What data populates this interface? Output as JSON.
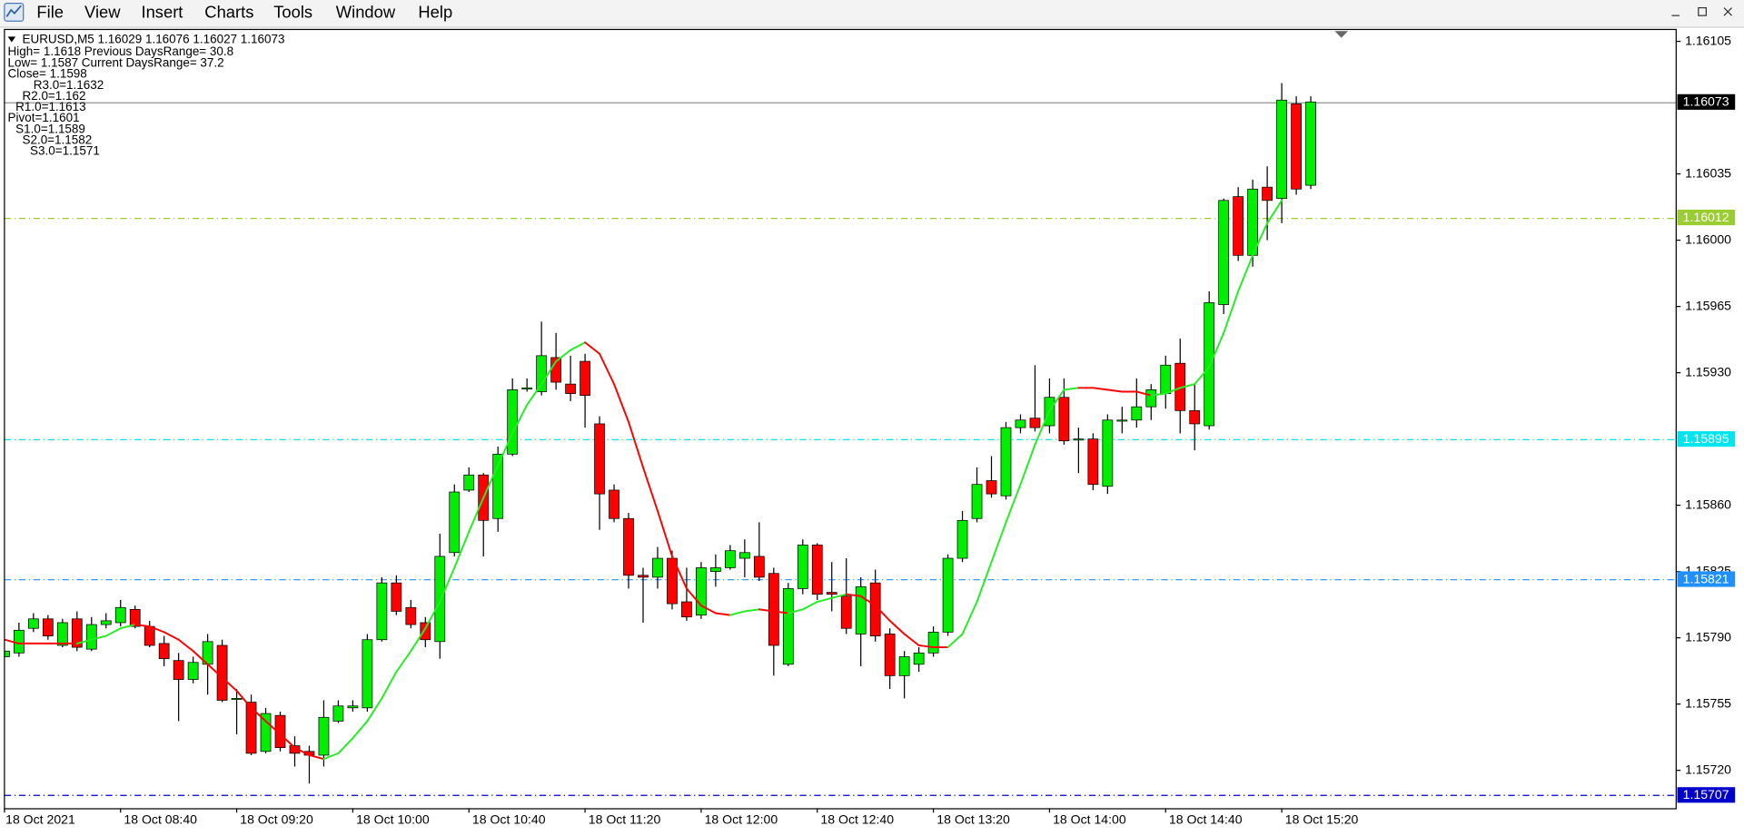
{
  "menu": [
    "File",
    "View",
    "Insert",
    "Charts",
    "Tools",
    "Window",
    "Help"
  ],
  "chart_data": {
    "type": "candlestick",
    "title": "EURUSD,M5  1.16029 1.16076 1.16027 1.16073",
    "info": [
      "High= 1.1618 Previous DaysRange= 30.8",
      "Low= 1.1587 Current DaysRange= 37.2",
      "Close= 1.1598"
    ],
    "pivots": [
      "R3.0=1.1632",
      "R2.0=1.162",
      "R1.0=1.1613",
      "Pivot=1.1601",
      "S1.0=1.1589",
      "S2.0=1.1582",
      "S3.0=1.1571"
    ],
    "categories": [
      "18 Oct 2021",
      null,
      null,
      null,
      null,
      null,
      null,
      null,
      "18 Oct 08:40",
      null,
      null,
      null,
      null,
      null,
      null,
      null,
      "18 Oct 09:20",
      null,
      null,
      null,
      null,
      null,
      null,
      null,
      "18 Oct 10:00",
      null,
      null,
      null,
      null,
      null,
      null,
      null,
      "18 Oct 10:40",
      null,
      null,
      null,
      null,
      null,
      null,
      null,
      "18 Oct 11:20",
      null,
      null,
      null,
      null,
      null,
      null,
      null,
      "18 Oct 12:00",
      null,
      null,
      null,
      null,
      null,
      null,
      null,
      "18 Oct 12:40",
      null,
      null,
      null,
      null,
      null,
      null,
      null,
      "18 Oct 13:20",
      null,
      null,
      null,
      null,
      null,
      null,
      null,
      "18 Oct 14:00",
      null,
      null,
      null,
      null,
      null,
      null,
      null,
      "18 Oct 14:40",
      null,
      null,
      null,
      null,
      null,
      null,
      null,
      "18 Oct 15:20",
      null,
      null
    ],
    "open": [
      1.1578,
      1.15782,
      1.15795,
      1.158,
      1.15786,
      1.158,
      1.15784,
      1.15797,
      1.15798,
      1.15805,
      1.15796,
      1.15787,
      1.15778,
      1.15768,
      1.15776,
      1.15786,
      1.15758,
      1.15756,
      1.1573,
      1.15749,
      1.15733,
      1.1573,
      1.15728,
      1.15746,
      1.15753,
      1.15753,
      1.15789,
      1.15819,
      1.15806,
      1.15798,
      1.15788,
      1.15835,
      1.15868,
      1.15876,
      1.15853,
      1.15887,
      1.15922,
      1.1592,
      1.15938,
      1.15924,
      1.15936,
      1.15903,
      1.15868,
      1.15853,
      1.15823,
      1.15822,
      1.15832,
      1.15809,
      1.15802,
      1.15825,
      1.15827,
      1.15832,
      1.15833,
      1.15824,
      1.15776,
      1.15816,
      1.15839,
      1.15814,
      1.15812,
      1.15792,
      1.15819,
      1.15792,
      1.1577,
      1.15776,
      1.15782,
      1.15793,
      1.15832,
      1.15853,
      1.15873,
      1.15865,
      1.15901,
      1.15906,
      1.15902,
      1.15917,
      1.15895,
      1.15895,
      1.1587,
      1.15905,
      1.15905,
      1.15912,
      1.15919,
      1.15935,
      1.1591,
      1.15902,
      1.15966,
      1.16023,
      1.15992,
      1.16028,
      1.16022,
      1.16072,
      1.16029
    ],
    "high": [
      1.15786,
      1.15798,
      1.15803,
      1.15802,
      1.158,
      1.15804,
      1.15801,
      1.15803,
      1.1581,
      1.15807,
      1.15799,
      1.15791,
      1.15782,
      1.1578,
      1.15792,
      1.15789,
      1.15763,
      1.1576,
      1.15753,
      1.15751,
      1.15738,
      1.15733,
      1.15757,
      1.15757,
      1.15757,
      1.15792,
      1.15822,
      1.15823,
      1.1581,
      1.15801,
      1.15845,
      1.15871,
      1.1588,
      1.15877,
      1.15891,
      1.15927,
      1.15927,
      1.15957,
      1.15951,
      1.15939,
      1.1594,
      1.15907,
      1.15871,
      1.15856,
      1.15827,
      1.15838,
      1.15836,
      1.15827,
      1.1583,
      1.15834,
      1.15839,
      1.15842,
      1.15851,
      1.15827,
      1.15819,
      1.15842,
      1.1584,
      1.1583,
      1.15832,
      1.15822,
      1.15826,
      1.15795,
      1.15783,
      1.15785,
      1.15796,
      1.15834,
      1.15857,
      1.1588,
      1.15886,
      1.15904,
      1.15908,
      1.15934,
      1.15927,
      1.15927,
      1.15901,
      1.15898,
      1.15908,
      1.15912,
      1.15927,
      1.15924,
      1.15939,
      1.15948,
      1.15924,
      1.15973,
      1.16022,
      1.16028,
      1.16032,
      1.16039,
      1.16083,
      1.16076,
      1.16076
    ],
    "low": [
      1.15779,
      1.1578,
      1.15793,
      1.15789,
      1.15785,
      1.15783,
      1.15783,
      1.15795,
      1.15796,
      1.15795,
      1.15785,
      1.15775,
      1.15746,
      1.15766,
      1.1576,
      1.15756,
      1.15739,
      1.15728,
      1.15729,
      1.1573,
      1.15722,
      1.15713,
      1.15722,
      1.15745,
      1.15751,
      1.15751,
      1.15788,
      1.15802,
      1.15795,
      1.15785,
      1.15779,
      1.15833,
      1.15867,
      1.15833,
      1.15846,
      1.15886,
      1.1592,
      1.15918,
      1.15921,
      1.15915,
      1.15901,
      1.15847,
      1.15851,
      1.15816,
      1.15798,
      1.15816,
      1.15805,
      1.15799,
      1.158,
      1.15817,
      1.15826,
      1.15822,
      1.1582,
      1.1577,
      1.15775,
      1.15813,
      1.1581,
      1.15804,
      1.15792,
      1.15775,
      1.15788,
      1.15763,
      1.15758,
      1.15772,
      1.1578,
      1.15791,
      1.1583,
      1.15851,
      1.15864,
      1.15863,
      1.15898,
      1.15899,
      1.15898,
      1.15892,
      1.15877,
      1.15868,
      1.15866,
      1.15898,
      1.15901,
      1.15905,
      1.15911,
      1.15898,
      1.15889,
      1.159,
      1.15961,
      1.15989,
      1.15986,
      1.16,
      1.16009,
      1.16024,
      1.16027
    ],
    "close": [
      1.15783,
      1.15794,
      1.158,
      1.15791,
      1.15798,
      1.15785,
      1.15797,
      1.15799,
      1.15806,
      1.15796,
      1.15786,
      1.15779,
      1.15768,
      1.15777,
      1.15788,
      1.15757,
      1.15758,
      1.15729,
      1.1575,
      1.15732,
      1.15729,
      1.15728,
      1.15748,
      1.15754,
      1.15754,
      1.15789,
      1.15819,
      1.15804,
      1.15797,
      1.15789,
      1.15833,
      1.15867,
      1.15876,
      1.15852,
      1.15887,
      1.15921,
      1.15922,
      1.15939,
      1.15925,
      1.15919,
      1.15918,
      1.15866,
      1.15853,
      1.15823,
      1.15822,
      1.15832,
      1.15808,
      1.15801,
      1.15827,
      1.15827,
      1.15836,
      1.15835,
      1.15822,
      1.15786,
      1.15816,
      1.15839,
      1.15813,
      1.15813,
      1.15795,
      1.15817,
      1.15791,
      1.1577,
      1.1578,
      1.15782,
      1.15793,
      1.15832,
      1.15852,
      1.15871,
      1.15866,
      1.15901,
      1.15905,
      1.15901,
      1.15917,
      1.15894,
      1.15895,
      1.15871,
      1.15905,
      1.15905,
      1.15912,
      1.15921,
      1.15934,
      1.1591,
      1.15903,
      1.15967,
      1.16021,
      1.15992,
      1.16027,
      1.16021,
      1.16074,
      1.16027,
      1.16073
    ],
    "up_color": "#00ee00",
    "down_color": "#ff0000",
    "wick_color": "#000000",
    "ma": {
      "up_color": "#22ee22",
      "down_color": "#ff0000",
      "values": [
        1.15789,
        1.15787,
        1.15787,
        1.15787,
        1.15787,
        1.15787,
        1.15789,
        1.15791,
        1.15795,
        1.15797,
        1.15796,
        1.15793,
        1.15789,
        1.15783,
        1.15776,
        1.15769,
        1.15762,
        1.15753,
        1.15746,
        1.15739,
        1.15732,
        1.15728,
        1.15726,
        1.15729,
        1.15737,
        1.15746,
        1.15758,
        1.15772,
        1.15783,
        1.15795,
        1.15809,
        1.15827,
        1.15846,
        1.15864,
        1.15881,
        1.15898,
        1.15913,
        1.15924,
        1.15936,
        1.15942,
        1.15946,
        1.1594,
        1.15924,
        1.15904,
        1.1588,
        1.15857,
        1.15833,
        1.15816,
        1.15807,
        1.15803,
        1.15802,
        1.15804,
        1.15805,
        1.15804,
        1.15803,
        1.15805,
        1.15809,
        1.15811,
        1.15813,
        1.15812,
        1.15807,
        1.15799,
        1.15792,
        1.15786,
        1.15785,
        1.15785,
        1.15792,
        1.15809,
        1.1583,
        1.15851,
        1.15871,
        1.15892,
        1.1591,
        1.15921,
        1.15922,
        1.15922,
        1.15921,
        1.1592,
        1.1592,
        1.15918,
        1.15919,
        1.15922,
        1.15924,
        1.15933,
        1.15951,
        1.15973,
        1.15992,
        1.16009,
        1.16021,
        null,
        null
      ]
    },
    "price_lines": [
      {
        "value": 1.16073,
        "color": "#909090",
        "label_color": "#000000",
        "style": "solid"
      },
      {
        "value": 1.16012,
        "color": "#9acd32",
        "style": "dashdot"
      },
      {
        "value": 1.15895,
        "color": "#00e5ee",
        "style": "dashdot"
      },
      {
        "value": 1.15821,
        "color": "#1e90ff",
        "style": "dashdot"
      },
      {
        "value": 1.15707,
        "color": "#0000cd",
        "style": "dashdot"
      }
    ],
    "ylim": [
      1.157,
      1.16111
    ],
    "yticks": [
      1.16105,
      1.16035,
      {
        "value": 1.16,
        "label": "1.16000"
      },
      1.15965,
      {
        "value": 1.1593,
        "label": "1.15930"
      },
      {
        "value": 1.1586,
        "label": "1.15860"
      },
      1.15825,
      {
        "value": 1.1579,
        "label": "1.15790"
      },
      1.15755,
      {
        "value": 1.1572,
        "label": "1.15720"
      }
    ],
    "grid": false
  }
}
